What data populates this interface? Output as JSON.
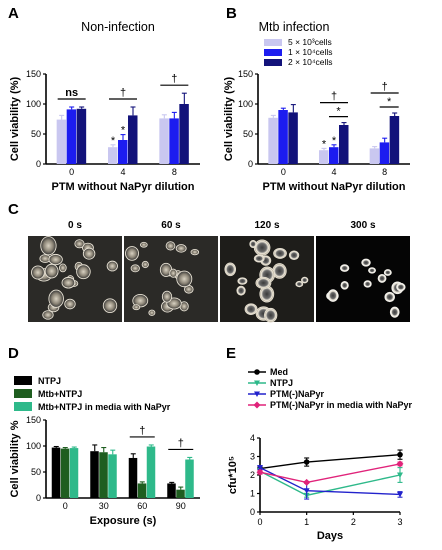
{
  "colors": {
    "light": "#c9c7f0",
    "mid": "#1c1cf0",
    "dark": "#12127a",
    "d_black": "#000000",
    "d_darkgreen": "#1f5e20",
    "d_teal": "#2eb98a",
    "e_med": "#000000",
    "e_ntpj": "#2eb98a",
    "e_ptm": "#2222cc",
    "e_ptm_media": "#e0237a"
  },
  "panels": {
    "A": {
      "letter": "A",
      "title": "Non-infection"
    },
    "B": {
      "letter": "B",
      "title": "Mtb infection"
    },
    "C": {
      "letter": "C"
    },
    "D": {
      "letter": "D"
    },
    "E": {
      "letter": "E"
    }
  },
  "micrographs": [
    "0 s",
    "60 s",
    "120 s",
    "300 s"
  ],
  "chart_data": [
    {
      "id": "A",
      "type": "bar",
      "title": "Non-infection",
      "xlabel": "PTM without NaPyr dilution",
      "ylabel": "Cell viability (%)",
      "ylim": [
        0,
        150
      ],
      "yticks": [
        0,
        50,
        100,
        150
      ],
      "categories": [
        "0",
        "4",
        "8"
      ],
      "series": [
        {
          "values": [
            74,
            28,
            76
          ],
          "errors": [
            7,
            4,
            6
          ],
          "color": "light"
        },
        {
          "values": [
            91,
            40,
            76
          ],
          "errors": [
            4,
            9,
            10
          ],
          "color": "mid"
        },
        {
          "values": [
            92,
            81,
            100
          ],
          "errors": [
            3,
            14,
            18
          ],
          "color": "dark"
        }
      ],
      "annotations": [
        {
          "text": "ns",
          "group": 0,
          "kind": "bracket"
        },
        {
          "text": "†",
          "group": 1,
          "kind": "bracket"
        },
        {
          "text": "†",
          "group": 2,
          "kind": "bracket"
        },
        {
          "text": "*",
          "group": 1,
          "series": 0,
          "kind": "star"
        },
        {
          "text": "*",
          "group": 1,
          "series": 1,
          "kind": "star"
        }
      ]
    },
    {
      "id": "B",
      "type": "bar",
      "title": "Mtb infection",
      "xlabel": "PTM without NaPyr dilution",
      "ylabel": "Cell viability (%)",
      "ylim": [
        0,
        150
      ],
      "yticks": [
        0,
        50,
        100,
        150
      ],
      "categories": [
        "0",
        "4",
        "8"
      ],
      "legend": [
        "5 × 10³cells",
        "1 × 10⁴cells",
        "2 × 10⁴cells"
      ],
      "legend_position": "top-right",
      "series": [
        {
          "name": "5 × 10³cells",
          "values": [
            77,
            23,
            26
          ],
          "errors": [
            4,
            3,
            3
          ],
          "color": "light"
        },
        {
          "name": "1 × 10⁴cells",
          "values": [
            90,
            28,
            36
          ],
          "errors": [
            3,
            4,
            7
          ],
          "color": "mid"
        },
        {
          "name": "2 × 10⁴cells",
          "values": [
            86,
            65,
            80
          ],
          "errors": [
            13,
            4,
            5
          ],
          "color": "dark"
        }
      ],
      "annotations": [
        {
          "text": "†",
          "group": 1,
          "kind": "bracket_top"
        },
        {
          "text": "*",
          "group": 1,
          "kind": "bracket_low"
        },
        {
          "text": "†",
          "group": 2,
          "kind": "bracket_top"
        },
        {
          "text": "*",
          "group": 2,
          "kind": "bracket_low"
        },
        {
          "text": "*",
          "group": 1,
          "series": 0,
          "kind": "star"
        },
        {
          "text": "*",
          "group": 1,
          "series": 1,
          "kind": "star"
        }
      ]
    },
    {
      "id": "D",
      "type": "bar",
      "xlabel": "Exposure (s)",
      "ylabel": "Cell viability %",
      "ylim": [
        0,
        150
      ],
      "yticks": [
        0,
        50,
        100,
        150
      ],
      "categories": [
        "0",
        "30",
        "60",
        "90"
      ],
      "legend": [
        "NTPJ",
        "Mtb+NTPJ",
        "Mtb+NTPJ in media with NaPyr"
      ],
      "legend_position": "top-left",
      "series": [
        {
          "name": "NTPJ",
          "values": [
            97,
            90,
            77,
            28
          ],
          "errors": [
            2,
            12,
            8,
            2
          ],
          "color": "d_black"
        },
        {
          "name": "Mtb+NTPJ",
          "values": [
            95,
            88,
            28,
            16
          ],
          "errors": [
            2,
            9,
            3,
            5
          ],
          "color": "d_darkgreen"
        },
        {
          "name": "Mtb+NTPJ in media with NaPyr",
          "values": [
            96,
            84,
            99,
            74
          ],
          "errors": [
            2,
            8,
            3,
            4
          ],
          "color": "d_teal"
        }
      ],
      "annotations": [
        {
          "text": "†",
          "group": 2,
          "kind": "bracket"
        },
        {
          "text": "†",
          "group": 3,
          "kind": "bracket"
        }
      ]
    },
    {
      "id": "E",
      "type": "line",
      "xlabel": "Days",
      "ylabel": "cfu*10⁵",
      "xlim": [
        0,
        3
      ],
      "ylim": [
        0,
        4
      ],
      "xticks": [
        0,
        1,
        2,
        3
      ],
      "yticks": [
        0,
        1,
        2,
        3,
        4
      ],
      "legend_position": "top",
      "series": [
        {
          "name": "Med",
          "x": [
            0,
            1,
            3
          ],
          "y": [
            2.35,
            2.7,
            3.1
          ],
          "err": [
            0.1,
            0.22,
            0.25
          ],
          "color": "e_med",
          "marker": "circle"
        },
        {
          "name": "NTPJ",
          "x": [
            0,
            1,
            3
          ],
          "y": [
            2.2,
            0.9,
            2.0
          ],
          "err": [
            0.15,
            0.1,
            0.4
          ],
          "color": "e_ntpj",
          "marker": "triangle-down"
        },
        {
          "name": "PTM(-)NaPyr",
          "x": [
            0,
            1,
            3
          ],
          "y": [
            2.4,
            1.15,
            0.95
          ],
          "err": [
            0.1,
            0.45,
            0.15
          ],
          "color": "e_ptm",
          "marker": "triangle-down"
        },
        {
          "name": "PTM(-)NaPyr in media with NaPyr",
          "x": [
            0,
            1,
            3
          ],
          "y": [
            2.15,
            1.6,
            2.6
          ],
          "err": [
            0.1,
            0.05,
            0.1
          ],
          "color": "e_ptm_media",
          "marker": "diamond"
        }
      ]
    }
  ]
}
